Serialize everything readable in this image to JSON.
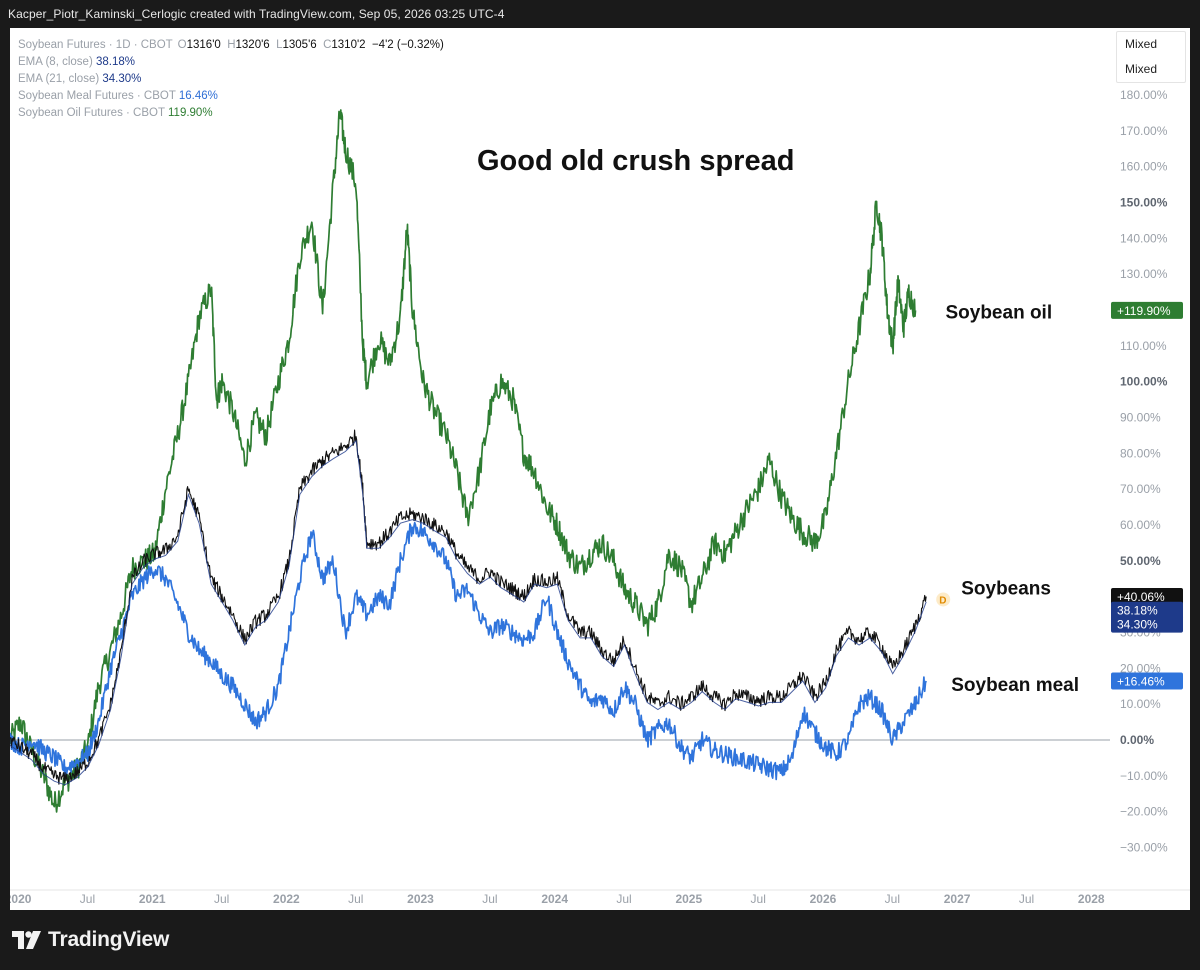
{
  "header": {
    "text": "Kacper_Piotr_Kaminski_Cerlogic created with TradingView.com, Sep 05, 2026 03:25 UTC-4"
  },
  "legend": {
    "main_symbol": "Soybean Futures · 1D · CBOT",
    "open_label": "O",
    "open": "1316'0",
    "high_label": "H",
    "high": "1320'6",
    "low_label": "L",
    "low": "1305'6",
    "close_label": "C",
    "close": "1310'2",
    "change": "−4'2 (−0.32%)",
    "ema8_label": "EMA (8, close)",
    "ema8_value": "38.18%",
    "ema21_label": "EMA (21, close)",
    "ema21_value": "34.30%",
    "meal_label": "Soybean Meal Futures · CBOT",
    "meal_value": "16.46%",
    "oil_label": "Soybean Oil Futures · CBOT",
    "oil_value": "119.90%"
  },
  "scale_mode": [
    "Mixed",
    "Mixed"
  ],
  "brand": {
    "name": "TradingView",
    "icon": "tradingview-logo-icon"
  },
  "colors": {
    "oil": "#2e7d32",
    "beans": "#111111",
    "meal": "#2f74dc",
    "ema": "#1e3a8a",
    "zero": "#9aa0a8"
  },
  "chart_data": {
    "type": "line",
    "title": "Good old crush spread",
    "ylim": [
      -35,
      185
    ],
    "y_ticks": [
      "180.00%",
      "170.00%",
      "160.00%",
      "150.00%",
      "140.00%",
      "130.00%",
      "120.00%",
      "110.00%",
      "100.00%",
      "90.00%",
      "80.00%",
      "70.00%",
      "60.00%",
      "50.00%",
      "40.00%",
      "30.00%",
      "20.00%",
      "10.00%",
      "0.00%",
      "−10.00%",
      "−20.00%",
      "−30.00%"
    ],
    "y_tick_values": [
      180,
      170,
      160,
      150,
      140,
      130,
      120,
      110,
      100,
      90,
      80,
      70,
      60,
      50,
      40,
      30,
      20,
      10,
      0,
      -10,
      -20,
      -30
    ],
    "x_ticks": [
      {
        "label": "2020",
        "t": 2020.0,
        "bold": true
      },
      {
        "label": "Jul",
        "t": 2020.5,
        "bold": false
      },
      {
        "label": "2021",
        "t": 2021.0,
        "bold": true
      },
      {
        "label": "Jul",
        "t": 2021.5,
        "bold": false
      },
      {
        "label": "2022",
        "t": 2022.0,
        "bold": true
      },
      {
        "label": "Jul",
        "t": 2022.5,
        "bold": false
      },
      {
        "label": "2023",
        "t": 2023.0,
        "bold": true
      },
      {
        "label": "Jul",
        "t": 2023.5,
        "bold": false
      },
      {
        "label": "2024",
        "t": 2024.0,
        "bold": true
      },
      {
        "label": "Jul",
        "t": 2024.5,
        "bold": false
      },
      {
        "label": "2025",
        "t": 2025.0,
        "bold": true
      },
      {
        "label": "Jul",
        "t": 2025.5,
        "bold": false
      },
      {
        "label": "2026",
        "t": 2026.0,
        "bold": true
      },
      {
        "label": "Jul",
        "t": 2026.5,
        "bold": false
      },
      {
        "label": "2027",
        "t": 2027.0,
        "bold": true
      },
      {
        "label": "Jul",
        "t": 2027.5,
        "bold": false
      },
      {
        "label": "2028",
        "t": 2028.0,
        "bold": true
      }
    ],
    "series": [
      {
        "name": "Soybean oil",
        "key": "oil",
        "label_value": "+119.90%",
        "points": [
          [
            2019.92,
            0
          ],
          [
            2020.0,
            5
          ],
          [
            2020.08,
            -3
          ],
          [
            2020.17,
            -10
          ],
          [
            2020.25,
            -18
          ],
          [
            2020.33,
            -12
          ],
          [
            2020.42,
            -8
          ],
          [
            2020.5,
            -2
          ],
          [
            2020.58,
            15
          ],
          [
            2020.67,
            25
          ],
          [
            2020.75,
            35
          ],
          [
            2020.83,
            48
          ],
          [
            2020.92,
            50
          ],
          [
            2021.0,
            52
          ],
          [
            2021.08,
            70
          ],
          [
            2021.17,
            85
          ],
          [
            2021.25,
            100
          ],
          [
            2021.33,
            118
          ],
          [
            2021.42,
            126
          ],
          [
            2021.46,
            95
          ],
          [
            2021.5,
            100
          ],
          [
            2021.58,
            92
          ],
          [
            2021.67,
            78
          ],
          [
            2021.75,
            90
          ],
          [
            2021.83,
            85
          ],
          [
            2021.92,
            100
          ],
          [
            2022.0,
            112
          ],
          [
            2022.08,
            135
          ],
          [
            2022.17,
            145
          ],
          [
            2022.25,
            120
          ],
          [
            2022.33,
            155
          ],
          [
            2022.38,
            175
          ],
          [
            2022.42,
            165
          ],
          [
            2022.5,
            155
          ],
          [
            2022.55,
            110
          ],
          [
            2022.58,
            100
          ],
          [
            2022.67,
            112
          ],
          [
            2022.75,
            105
          ],
          [
            2022.83,
            118
          ],
          [
            2022.88,
            143
          ],
          [
            2022.92,
            120
          ],
          [
            2023.0,
            100
          ],
          [
            2023.08,
            92
          ],
          [
            2023.17,
            85
          ],
          [
            2023.25,
            75
          ],
          [
            2023.33,
            62
          ],
          [
            2023.42,
            75
          ],
          [
            2023.5,
            92
          ],
          [
            2023.58,
            100
          ],
          [
            2023.67,
            95
          ],
          [
            2023.75,
            80
          ],
          [
            2023.83,
            75
          ],
          [
            2023.92,
            65
          ],
          [
            2024.0,
            60
          ],
          [
            2024.08,
            52
          ],
          [
            2024.17,
            48
          ],
          [
            2024.25,
            52
          ],
          [
            2024.33,
            55
          ],
          [
            2024.42,
            50
          ],
          [
            2024.5,
            42
          ],
          [
            2024.58,
            38
          ],
          [
            2024.67,
            32
          ],
          [
            2024.75,
            38
          ],
          [
            2024.83,
            52
          ],
          [
            2024.92,
            48
          ],
          [
            2025.0,
            38
          ],
          [
            2025.08,
            45
          ],
          [
            2025.17,
            55
          ],
          [
            2025.25,
            52
          ],
          [
            2025.33,
            58
          ],
          [
            2025.42,
            65
          ],
          [
            2025.5,
            70
          ],
          [
            2025.58,
            78
          ],
          [
            2025.67,
            68
          ],
          [
            2025.75,
            62
          ],
          [
            2025.83,
            58
          ],
          [
            2025.92,
            55
          ],
          [
            2026.0,
            62
          ],
          [
            2026.08,
            80
          ],
          [
            2026.17,
            100
          ],
          [
            2026.25,
            115
          ],
          [
            2026.33,
            130
          ],
          [
            2026.38,
            150
          ],
          [
            2026.42,
            140
          ],
          [
            2026.46,
            120
          ],
          [
            2026.5,
            110
          ],
          [
            2026.54,
            128
          ],
          [
            2026.58,
            115
          ],
          [
            2026.62,
            125
          ],
          [
            2026.67,
            119.9
          ]
        ]
      },
      {
        "name": "Soybeans",
        "key": "beans",
        "label_value": "+40.06%",
        "points": [
          [
            2019.92,
            0
          ],
          [
            2020.0,
            -2
          ],
          [
            2020.08,
            -4
          ],
          [
            2020.17,
            -8
          ],
          [
            2020.25,
            -10
          ],
          [
            2020.33,
            -11
          ],
          [
            2020.42,
            -9
          ],
          [
            2020.5,
            -6
          ],
          [
            2020.58,
            0
          ],
          [
            2020.67,
            10
          ],
          [
            2020.75,
            25
          ],
          [
            2020.83,
            45
          ],
          [
            2020.92,
            50
          ],
          [
            2021.0,
            52
          ],
          [
            2021.08,
            53
          ],
          [
            2021.17,
            57
          ],
          [
            2021.25,
            70
          ],
          [
            2021.33,
            62
          ],
          [
            2021.42,
            45
          ],
          [
            2021.5,
            40
          ],
          [
            2021.58,
            35
          ],
          [
            2021.67,
            28
          ],
          [
            2021.75,
            33
          ],
          [
            2021.83,
            35
          ],
          [
            2021.92,
            40
          ],
          [
            2022.0,
            50
          ],
          [
            2022.08,
            70
          ],
          [
            2022.17,
            75
          ],
          [
            2022.25,
            78
          ],
          [
            2022.33,
            80
          ],
          [
            2022.42,
            82
          ],
          [
            2022.5,
            85
          ],
          [
            2022.55,
            70
          ],
          [
            2022.58,
            55
          ],
          [
            2022.67,
            55
          ],
          [
            2022.75,
            58
          ],
          [
            2022.83,
            62
          ],
          [
            2022.92,
            63
          ],
          [
            2023.0,
            62
          ],
          [
            2023.08,
            60
          ],
          [
            2023.17,
            58
          ],
          [
            2023.25,
            52
          ],
          [
            2023.33,
            48
          ],
          [
            2023.42,
            45
          ],
          [
            2023.5,
            47
          ],
          [
            2023.58,
            44
          ],
          [
            2023.67,
            42
          ],
          [
            2023.75,
            40
          ],
          [
            2023.83,
            45
          ],
          [
            2023.92,
            44
          ],
          [
            2024.0,
            45
          ],
          [
            2024.08,
            35
          ],
          [
            2024.17,
            30
          ],
          [
            2024.25,
            30
          ],
          [
            2024.33,
            25
          ],
          [
            2024.42,
            22
          ],
          [
            2024.5,
            28
          ],
          [
            2024.58,
            20
          ],
          [
            2024.67,
            12
          ],
          [
            2024.75,
            10
          ],
          [
            2024.83,
            12
          ],
          [
            2024.92,
            10
          ],
          [
            2025.0,
            12
          ],
          [
            2025.08,
            15
          ],
          [
            2025.17,
            12
          ],
          [
            2025.25,
            10
          ],
          [
            2025.33,
            13
          ],
          [
            2025.42,
            12
          ],
          [
            2025.5,
            11
          ],
          [
            2025.58,
            12
          ],
          [
            2025.67,
            12
          ],
          [
            2025.75,
            15
          ],
          [
            2025.83,
            18
          ],
          [
            2025.92,
            12
          ],
          [
            2026.0,
            16
          ],
          [
            2026.08,
            25
          ],
          [
            2026.17,
            30
          ],
          [
            2026.25,
            28
          ],
          [
            2026.33,
            30
          ],
          [
            2026.42,
            26
          ],
          [
            2026.5,
            20
          ],
          [
            2026.58,
            25
          ],
          [
            2026.67,
            32
          ],
          [
            2026.75,
            40.06
          ]
        ]
      },
      {
        "name": "Soybean meal",
        "key": "meal",
        "label_value": "+16.46%",
        "points": [
          [
            2019.92,
            0
          ],
          [
            2020.0,
            -2
          ],
          [
            2020.08,
            0
          ],
          [
            2020.17,
            -3
          ],
          [
            2020.25,
            -5
          ],
          [
            2020.33,
            -8
          ],
          [
            2020.42,
            -6
          ],
          [
            2020.5,
            -4
          ],
          [
            2020.58,
            5
          ],
          [
            2020.67,
            20
          ],
          [
            2020.75,
            30
          ],
          [
            2020.83,
            40
          ],
          [
            2020.92,
            45
          ],
          [
            2021.0,
            48
          ],
          [
            2021.08,
            45
          ],
          [
            2021.17,
            38
          ],
          [
            2021.25,
            30
          ],
          [
            2021.33,
            25
          ],
          [
            2021.42,
            22
          ],
          [
            2021.5,
            18
          ],
          [
            2021.58,
            15
          ],
          [
            2021.67,
            10
          ],
          [
            2021.75,
            5
          ],
          [
            2021.83,
            8
          ],
          [
            2021.92,
            15
          ],
          [
            2022.0,
            30
          ],
          [
            2022.08,
            45
          ],
          [
            2022.17,
            58
          ],
          [
            2022.25,
            45
          ],
          [
            2022.33,
            50
          ],
          [
            2022.42,
            30
          ],
          [
            2022.5,
            40
          ],
          [
            2022.58,
            35
          ],
          [
            2022.67,
            40
          ],
          [
            2022.75,
            38
          ],
          [
            2022.83,
            50
          ],
          [
            2022.92,
            60
          ],
          [
            2023.0,
            58
          ],
          [
            2023.08,
            55
          ],
          [
            2023.17,
            50
          ],
          [
            2023.25,
            40
          ],
          [
            2023.33,
            42
          ],
          [
            2023.42,
            35
          ],
          [
            2023.5,
            30
          ],
          [
            2023.58,
            32
          ],
          [
            2023.67,
            30
          ],
          [
            2023.75,
            28
          ],
          [
            2023.83,
            30
          ],
          [
            2023.92,
            40
          ],
          [
            2024.0,
            30
          ],
          [
            2024.08,
            22
          ],
          [
            2024.17,
            15
          ],
          [
            2024.25,
            10
          ],
          [
            2024.33,
            12
          ],
          [
            2024.42,
            8
          ],
          [
            2024.5,
            15
          ],
          [
            2024.58,
            10
          ],
          [
            2024.67,
            0
          ],
          [
            2024.75,
            3
          ],
          [
            2024.83,
            5
          ],
          [
            2024.92,
            -2
          ],
          [
            2025.0,
            -5
          ],
          [
            2025.08,
            0
          ],
          [
            2025.17,
            -3
          ],
          [
            2025.25,
            -4
          ],
          [
            2025.33,
            -5
          ],
          [
            2025.42,
            -6
          ],
          [
            2025.5,
            -7
          ],
          [
            2025.58,
            -8
          ],
          [
            2025.67,
            -9
          ],
          [
            2025.75,
            -5
          ],
          [
            2025.83,
            8
          ],
          [
            2025.92,
            2
          ],
          [
            2026.0,
            -2
          ],
          [
            2026.08,
            -4
          ],
          [
            2026.17,
            0
          ],
          [
            2026.25,
            10
          ],
          [
            2026.33,
            12
          ],
          [
            2026.42,
            8
          ],
          [
            2026.5,
            0
          ],
          [
            2026.58,
            5
          ],
          [
            2026.67,
            10
          ],
          [
            2026.75,
            16.46
          ]
        ]
      }
    ],
    "ema": [
      {
        "key": "ema8",
        "label_value": "38.18%",
        "y": 38.18
      },
      {
        "key": "ema21",
        "label_value": "34.30%",
        "y": 34.3
      }
    ],
    "annotations": [
      {
        "key": "oil",
        "text": "Soybean oil"
      },
      {
        "key": "beans",
        "text": "Soybeans"
      },
      {
        "key": "meal",
        "text": "Soybean meal"
      }
    ],
    "flag_marker": "D",
    "grid": false,
    "zero_line": true
  }
}
